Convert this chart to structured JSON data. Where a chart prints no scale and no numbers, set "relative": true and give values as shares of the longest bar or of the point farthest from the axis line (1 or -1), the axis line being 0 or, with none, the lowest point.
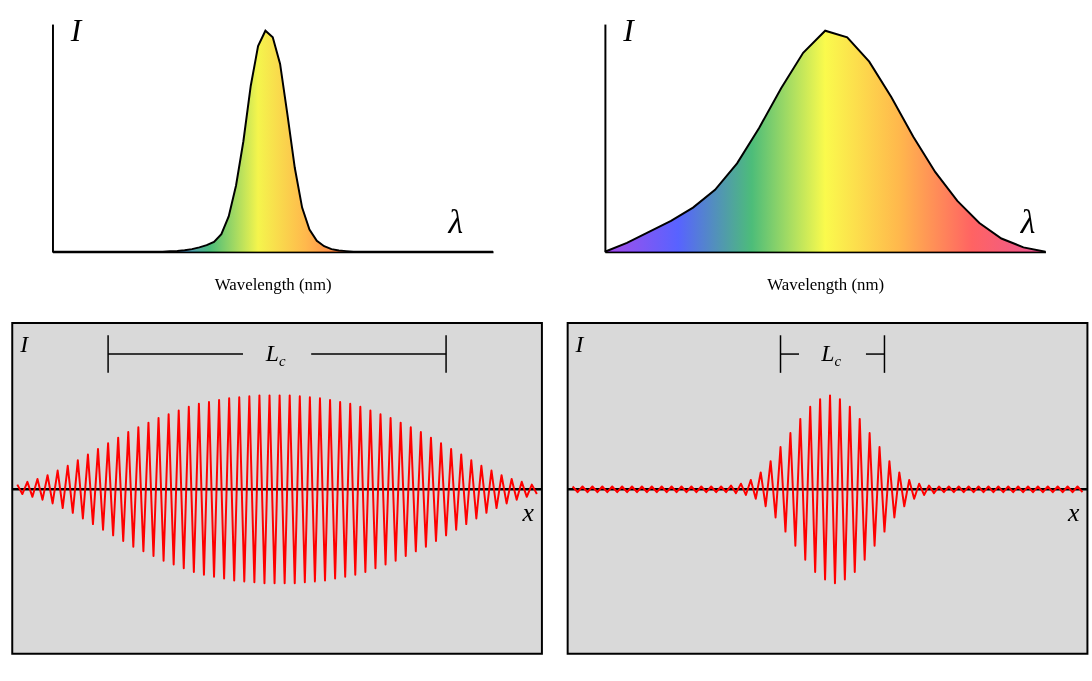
{
  "chart_data": [
    {
      "type": "area",
      "relative": true,
      "xlabel": "Wavelength (nm)",
      "ylabel": "I",
      "annotations": [
        "λ"
      ],
      "categories": [
        null,
        null,
        null,
        null,
        null,
        null,
        null,
        null,
        null,
        null,
        null,
        null,
        null,
        null,
        null,
        null,
        null,
        null,
        null,
        null,
        null,
        null,
        null,
        null,
        null,
        null,
        null,
        null,
        null,
        null,
        null,
        null,
        null,
        null,
        null,
        null,
        null,
        null,
        null,
        null,
        null,
        null,
        null,
        null,
        null,
        null,
        null,
        null,
        null,
        null,
        null,
        null,
        null,
        null,
        null,
        null,
        null,
        null,
        null,
        null,
        null
      ],
      "colors": [
        "#1030ff",
        "#00a040",
        "#f0f000",
        "#ff9a00",
        "#ff3000"
      ],
      "series": [
        {
          "color": "#000000",
          "values": [
            0,
            0,
            0,
            0,
            0,
            0,
            0,
            0,
            0,
            0,
            0,
            0,
            0,
            0,
            0,
            0,
            0.002,
            0.004,
            0.007,
            0.012,
            0.02,
            0.03,
            0.045,
            0.08,
            0.16,
            0.3,
            0.5,
            0.75,
            0.93,
            1,
            0.97,
            0.85,
            0.62,
            0.38,
            0.2,
            0.1,
            0.05,
            0.025,
            0.012,
            0.006,
            0.003,
            0,
            0,
            0,
            0,
            0,
            0,
            0,
            0,
            0,
            0,
            0,
            0,
            0,
            0,
            0,
            0,
            0,
            0,
            0,
            0
          ]
        }
      ]
    },
    {
      "type": "area",
      "relative": true,
      "xlabel": "Wavelength (nm)",
      "ylabel": "I",
      "annotations": [
        "λ"
      ],
      "categories": [
        null,
        null,
        null,
        null,
        null,
        null,
        null,
        null,
        null,
        null,
        null,
        null,
        null,
        null,
        null,
        null,
        null,
        null,
        null,
        null,
        null
      ],
      "colors": [
        "#8000e0",
        "#1020ff",
        "#00a040",
        "#f8f800",
        "#ff9a00",
        "#ff2020",
        "#e0106a"
      ],
      "series": [
        {
          "color": "#000000",
          "values": [
            0,
            0.04,
            0.09,
            0.14,
            0.2,
            0.28,
            0.4,
            0.56,
            0.74,
            0.9,
            1,
            0.97,
            0.86,
            0.7,
            0.52,
            0.36,
            0.23,
            0.13,
            0.06,
            0.02,
            0
          ]
        }
      ]
    },
    {
      "type": "line",
      "relative": true,
      "xlabel": "x",
      "ylabel": "I",
      "annotations": [
        "L$_{c}$"
      ],
      "categories": [
        null,
        null,
        null,
        null,
        null,
        null,
        null,
        null,
        null,
        null,
        null,
        null,
        null,
        null,
        null,
        null,
        null,
        null,
        null,
        null,
        null,
        null,
        null,
        null,
        null,
        null,
        null,
        null,
        null,
        null,
        null,
        null,
        null,
        null,
        null,
        null,
        null,
        null,
        null,
        null,
        null,
        null,
        null,
        null,
        null,
        null,
        null,
        null,
        null,
        null,
        null,
        null,
        null,
        null,
        null,
        null,
        null,
        null,
        null,
        null,
        null,
        null,
        null,
        null,
        null,
        null,
        null,
        null,
        null,
        null,
        null,
        null,
        null,
        null,
        null,
        null,
        null,
        null,
        null,
        null,
        null,
        null,
        null,
        null,
        null,
        null,
        null,
        null,
        null,
        null,
        null,
        null,
        null,
        null,
        null,
        null,
        null,
        null,
        null,
        null,
        null,
        null,
        null,
        null
      ],
      "series": [
        {
          "color": "#ff0000",
          "values": [
            0.05,
            -0.05,
            0.08,
            -0.08,
            0.11,
            -0.11,
            0.15,
            -0.15,
            0.2,
            -0.2,
            0.25,
            -0.25,
            0.31,
            -0.31,
            0.37,
            -0.37,
            0.43,
            -0.43,
            0.49,
            -0.49,
            0.55,
            -0.55,
            0.61,
            -0.61,
            0.66,
            -0.66,
            0.71,
            -0.71,
            0.76,
            -0.76,
            0.8,
            -0.8,
            0.84,
            -0.84,
            0.88,
            -0.88,
            0.91,
            -0.91,
            0.93,
            -0.93,
            0.95,
            -0.95,
            0.97,
            -0.97,
            0.98,
            -0.98,
            0.99,
            -0.99,
            1,
            -1,
            1,
            -1,
            1,
            -1,
            1,
            -1,
            0.99,
            -0.99,
            0.98,
            -0.98,
            0.97,
            -0.97,
            0.95,
            -0.95,
            0.93,
            -0.93,
            0.91,
            -0.91,
            0.88,
            -0.88,
            0.84,
            -0.84,
            0.8,
            -0.8,
            0.76,
            -0.76,
            0.71,
            -0.71,
            0.66,
            -0.66,
            0.61,
            -0.61,
            0.55,
            -0.55,
            0.49,
            -0.49,
            0.43,
            -0.43,
            0.37,
            -0.37,
            0.31,
            -0.31,
            0.25,
            -0.25,
            0.2,
            -0.2,
            0.15,
            -0.15,
            0.11,
            -0.11,
            0.08,
            -0.08,
            0.05,
            -0.05
          ]
        }
      ]
    },
    {
      "type": "line",
      "relative": true,
      "xlabel": "x",
      "ylabel": "I",
      "annotations": [
        "L$_{c}$"
      ],
      "categories": [
        null,
        null,
        null,
        null,
        null,
        null,
        null,
        null,
        null,
        null,
        null,
        null,
        null,
        null,
        null,
        null,
        null,
        null,
        null,
        null,
        null,
        null,
        null,
        null,
        null,
        null,
        null,
        null,
        null,
        null,
        null,
        null,
        null,
        null,
        null,
        null,
        null,
        null,
        null,
        null,
        null,
        null,
        null,
        null,
        null,
        null,
        null,
        null,
        null,
        null,
        null,
        null,
        null,
        null,
        null,
        null,
        null,
        null,
        null,
        null,
        null,
        null,
        null,
        null,
        null,
        null,
        null,
        null,
        null,
        null,
        null,
        null,
        null,
        null,
        null,
        null,
        null,
        null,
        null,
        null,
        null,
        null,
        null,
        null,
        null,
        null,
        null,
        null,
        null,
        null,
        null,
        null,
        null,
        null,
        null,
        null,
        null,
        null,
        null,
        null,
        null,
        null,
        null,
        null
      ],
      "series": [
        {
          "color": "#ff0000",
          "values": [
            0.03,
            -0.03,
            0.03,
            -0.03,
            0.03,
            -0.03,
            0.03,
            -0.03,
            0.03,
            -0.03,
            0.03,
            -0.03,
            0.03,
            -0.03,
            0.03,
            -0.03,
            0.03,
            -0.03,
            0.03,
            -0.03,
            0.03,
            -0.03,
            0.03,
            -0.03,
            0.03,
            -0.03,
            0.03,
            -0.03,
            0.03,
            -0.03,
            0.03,
            -0.03,
            0.04,
            -0.04,
            0.06,
            -0.06,
            0.1,
            -0.1,
            0.18,
            -0.18,
            0.3,
            -0.3,
            0.45,
            -0.45,
            0.6,
            -0.6,
            0.75,
            -0.75,
            0.88,
            -0.88,
            0.96,
            -0.96,
            1,
            -1,
            0.96,
            -0.96,
            0.88,
            -0.88,
            0.75,
            -0.75,
            0.6,
            -0.6,
            0.45,
            -0.45,
            0.3,
            -0.3,
            0.18,
            -0.18,
            0.1,
            -0.1,
            0.06,
            -0.06,
            0.04,
            -0.04,
            0.03,
            -0.03,
            0.03,
            -0.03,
            0.03,
            -0.03,
            0.03,
            -0.03,
            0.03,
            -0.03,
            0.03,
            -0.03,
            0.03,
            -0.03,
            0.03,
            -0.03,
            0.03,
            -0.03,
            0.03,
            -0.03,
            0.03,
            -0.03,
            0.03,
            -0.03,
            0.03,
            -0.03,
            0.03,
            -0.03,
            0.03,
            -0.03
          ]
        }
      ]
    }
  ]
}
